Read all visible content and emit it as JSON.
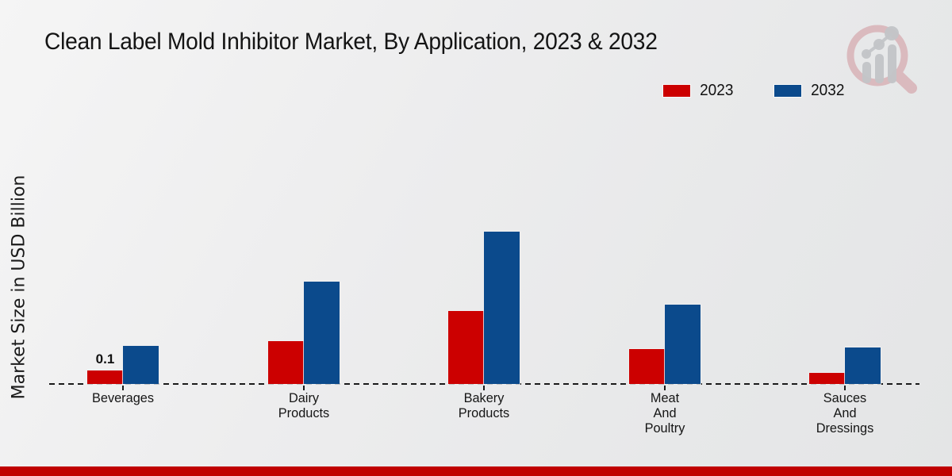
{
  "header": {
    "title": "Clean Label Mold Inhibitor Market, By Application, 2023 & 2032"
  },
  "axis": {
    "ylabel": "Market Size in USD Billion"
  },
  "legend": {
    "items": [
      {
        "label": "2023",
        "color": "#cc0000"
      },
      {
        "label": "2032",
        "color": "#0b4a8c"
      }
    ]
  },
  "colors": {
    "series_2023": "#cc0000",
    "series_2032": "#0b4a8c",
    "footer_bar": "#c00000",
    "background": "#ebecec",
    "text": "#141414"
  },
  "chart_data": {
    "type": "bar",
    "title": "Clean Label Mold Inhibitor Market, By Application, 2023 & 2032",
    "xlabel": "",
    "ylabel": "Market Size in USD Billion",
    "categories": [
      "Beverages",
      "Dairy Products",
      "Bakery Products",
      "Meat And Poultry",
      "Sauces And Dressings"
    ],
    "category_label_lines": [
      [
        "Beverages"
      ],
      [
        "Dairy",
        "Products"
      ],
      [
        "Bakery",
        "Products"
      ],
      [
        "Meat",
        "And",
        "Poultry"
      ],
      [
        "Sauces",
        "And",
        "Dressings"
      ]
    ],
    "series": [
      {
        "name": "2023",
        "color": "#cc0000",
        "values": [
          0.1,
          0.32,
          0.54,
          0.26,
          0.08
        ]
      },
      {
        "name": "2032",
        "color": "#0b4a8c",
        "values": [
          0.28,
          0.76,
          1.13,
          0.59,
          0.27
        ]
      }
    ],
    "data_labels": [
      {
        "series": "2023",
        "category": "Beverages",
        "text": "0.1"
      }
    ],
    "ylim": [
      0,
      1.25
    ],
    "grid": false,
    "legend_position": "top-right",
    "baseline_style": "dashed"
  }
}
